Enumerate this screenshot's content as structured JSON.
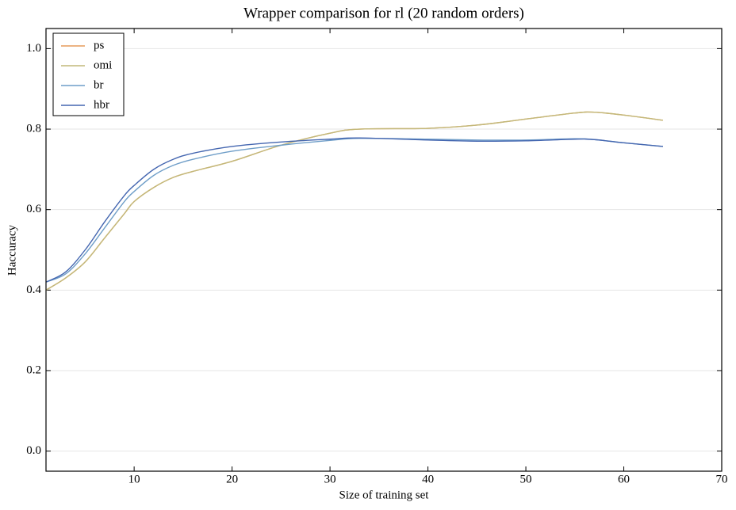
{
  "chart_data": {
    "type": "line",
    "title": "Wrapper comparison for rl (20 random orders)",
    "x_label": "Size of training set",
    "y_label": "Haccuracy",
    "x": [
      1,
      3,
      5,
      7,
      9,
      10,
      12,
      14,
      16,
      20,
      25,
      30,
      33,
      40,
      45,
      50,
      55,
      57,
      60,
      64
    ],
    "series": [
      {
        "name": "ps",
        "color": "#e59c5a",
        "values": [
          0.4,
          0.43,
          0.47,
          0.53,
          0.59,
          0.62,
          0.655,
          0.68,
          0.695,
          0.72,
          0.76,
          0.79,
          0.8,
          0.802,
          0.81,
          0.825,
          0.84,
          0.842,
          0.835,
          0.822
        ]
      },
      {
        "name": "omi",
        "color": "#c2b97a",
        "values": [
          0.4,
          0.43,
          0.47,
          0.53,
          0.59,
          0.62,
          0.655,
          0.68,
          0.695,
          0.72,
          0.76,
          0.79,
          0.8,
          0.802,
          0.81,
          0.825,
          0.84,
          0.842,
          0.835,
          0.822
        ]
      },
      {
        "name": "br",
        "color": "#6f9ec8",
        "values": [
          0.42,
          0.44,
          0.49,
          0.555,
          0.62,
          0.645,
          0.685,
          0.71,
          0.725,
          0.745,
          0.76,
          0.772,
          0.777,
          0.775,
          0.773,
          0.773,
          0.776,
          0.774,
          0.766,
          0.757
        ]
      },
      {
        "name": "hbr",
        "color": "#4466b0",
        "values": [
          0.42,
          0.445,
          0.5,
          0.57,
          0.635,
          0.66,
          0.7,
          0.725,
          0.74,
          0.757,
          0.768,
          0.775,
          0.778,
          0.773,
          0.77,
          0.771,
          0.775,
          0.774,
          0.766,
          0.757
        ]
      }
    ],
    "xlim": [
      1,
      70
    ],
    "xticks": [
      10,
      20,
      30,
      40,
      50,
      60,
      70
    ],
    "ylim": [
      -0.05,
      1.05
    ],
    "yticks": [
      {
        "value": 0,
        "label": "0.0"
      },
      0.2,
      0.4,
      0.6,
      0.8,
      {
        "value": 1,
        "label": "1.0"
      }
    ],
    "grid": "y",
    "legend": "upper left"
  }
}
